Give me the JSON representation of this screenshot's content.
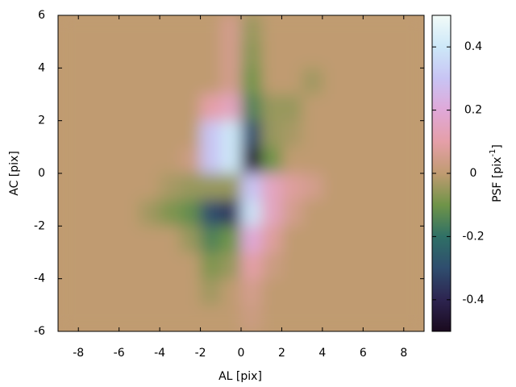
{
  "chart_data": {
    "type": "heatmap",
    "xlabel": "AL [pix]",
    "ylabel": "AC [pix]",
    "zlabel": [
      "PSF [pix",
      "-1",
      "]"
    ],
    "xlim": [
      -9,
      9
    ],
    "ylim": [
      -6,
      6
    ],
    "zlim": [
      -0.5,
      0.5
    ],
    "xticks": [
      -8,
      -6,
      -4,
      -2,
      0,
      2,
      4,
      6,
      8
    ],
    "yticks": [
      -6,
      -4,
      -2,
      0,
      2,
      4,
      6
    ],
    "zticks": [
      -0.4,
      -0.2,
      0,
      0.2,
      0.4
    ],
    "colormap": [
      "#1a0a1e",
      "#2d2450",
      "#2f4d6e",
      "#2f7066",
      "#6f9448",
      "#c09b71",
      "#e59fa8",
      "#e0a8d8",
      "#c8c4f4",
      "#cde8f8",
      "#f2fbf8"
    ],
    "x": [
      -8.5,
      -7.5,
      -6.5,
      -5.5,
      -4.5,
      -3.5,
      -2.5,
      -1.5,
      -0.5,
      0.5,
      1.5,
      2.5,
      3.5,
      4.5,
      5.5,
      6.5,
      7.5,
      8.5
    ],
    "y": [
      5.5,
      4.5,
      3.5,
      2.5,
      1.5,
      0.5,
      -0.5,
      -1.5,
      -2.5,
      -3.5,
      -4.5,
      -5.5
    ],
    "z": [
      [
        0,
        0,
        0,
        0,
        0,
        0,
        0,
        0,
        0.05,
        -0.05,
        0,
        0,
        0,
        0,
        0,
        0,
        0,
        0
      ],
      [
        0,
        0,
        0,
        0,
        0,
        0,
        0,
        0,
        0.05,
        -0.07,
        0,
        0,
        0,
        0,
        0,
        0,
        0,
        0
      ],
      [
        0,
        0,
        0,
        0,
        0,
        0,
        0,
        0,
        0.05,
        -0.1,
        0,
        0,
        -0.04,
        0,
        0,
        0,
        0,
        0
      ],
      [
        0,
        0,
        0,
        0,
        0,
        0,
        0,
        0.1,
        0.15,
        -0.15,
        -0.05,
        -0.05,
        0,
        0,
        0,
        0,
        0,
        0
      ],
      [
        0,
        0,
        0,
        0,
        0,
        0,
        0,
        0.3,
        0.4,
        -0.3,
        -0.05,
        -0.03,
        0,
        0,
        0,
        0,
        0,
        0
      ],
      [
        0,
        0,
        0,
        0,
        0,
        0,
        0.03,
        0.3,
        0.4,
        -0.45,
        -0.1,
        0,
        0,
        0,
        0,
        0,
        0,
        0
      ],
      [
        0,
        0,
        0,
        0,
        0,
        -0.03,
        -0.05,
        -0.05,
        -0.05,
        0.3,
        0.15,
        0.08,
        0.05,
        0,
        0,
        0,
        0,
        0
      ],
      [
        0,
        0,
        0,
        0,
        -0.04,
        -0.08,
        -0.12,
        -0.3,
        -0.35,
        0.38,
        0.15,
        0.05,
        0,
        0,
        0,
        0,
        0,
        0
      ],
      [
        0,
        0,
        0,
        0,
        0,
        0,
        -0.05,
        -0.15,
        -0.1,
        0.2,
        0.08,
        0,
        0,
        0,
        0,
        0,
        0,
        0
      ],
      [
        0,
        0,
        0,
        0,
        0,
        0,
        0,
        -0.08,
        -0.05,
        0.1,
        0.03,
        0,
        0,
        0,
        0,
        0,
        0,
        0
      ],
      [
        0,
        0,
        0,
        0,
        0,
        0,
        0,
        -0.04,
        0,
        0.05,
        0,
        0,
        0,
        0,
        0,
        0,
        0,
        0
      ],
      [
        0,
        0,
        0,
        0,
        0,
        0,
        0,
        0,
        0,
        0.03,
        0,
        0,
        0,
        0,
        0,
        0,
        0,
        0
      ]
    ]
  }
}
